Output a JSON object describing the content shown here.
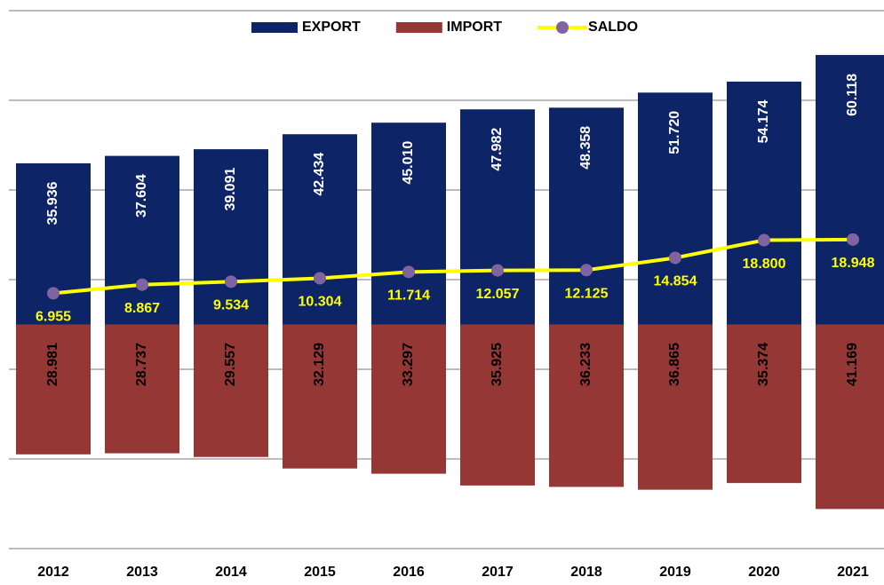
{
  "chart_data": {
    "type": "bar",
    "categories": [
      "2012",
      "2013",
      "2014",
      "2015",
      "2016",
      "2017",
      "2018",
      "2019",
      "2020",
      "2021"
    ],
    "series": [
      {
        "name": "EXPORT",
        "color": "#0d2466",
        "values": [
          35.936,
          37.604,
          39.091,
          42.434,
          45.01,
          47.982,
          48.358,
          51.72,
          54.174,
          60.118
        ],
        "value_labels": [
          "35.936",
          "37.604",
          "39.091",
          "42.434",
          "45.010",
          "47.982",
          "48.358",
          "51.720",
          "54.174",
          "60.118"
        ]
      },
      {
        "name": "IMPORT",
        "color": "#953735",
        "values": [
          -28.981,
          -28.737,
          -29.557,
          -32.129,
          -33.297,
          -35.925,
          -36.233,
          -36.865,
          -35.374,
          -41.169
        ],
        "value_labels": [
          "28.981",
          "28.737",
          "29.557",
          "32.129",
          "33.297",
          "35.925",
          "36.233",
          "36.865",
          "35.374",
          "41.169"
        ]
      },
      {
        "name": "SALDO",
        "type": "line",
        "color": "#ffff00",
        "marker_color": "#8064a2",
        "values": [
          6.955,
          8.867,
          9.534,
          10.304,
          11.714,
          12.057,
          12.125,
          14.854,
          18.8,
          18.948
        ],
        "value_labels": [
          "6.955",
          "8.867",
          "9.534",
          "10.304",
          "11.714",
          "12.057",
          "12.125",
          "14.854",
          "18.800",
          "18.948"
        ]
      }
    ],
    "ylim": [
      -50,
      70
    ],
    "yticks": [
      -50,
      -30,
      -10,
      10,
      30,
      50,
      70
    ],
    "grid": true,
    "legend": "top"
  }
}
